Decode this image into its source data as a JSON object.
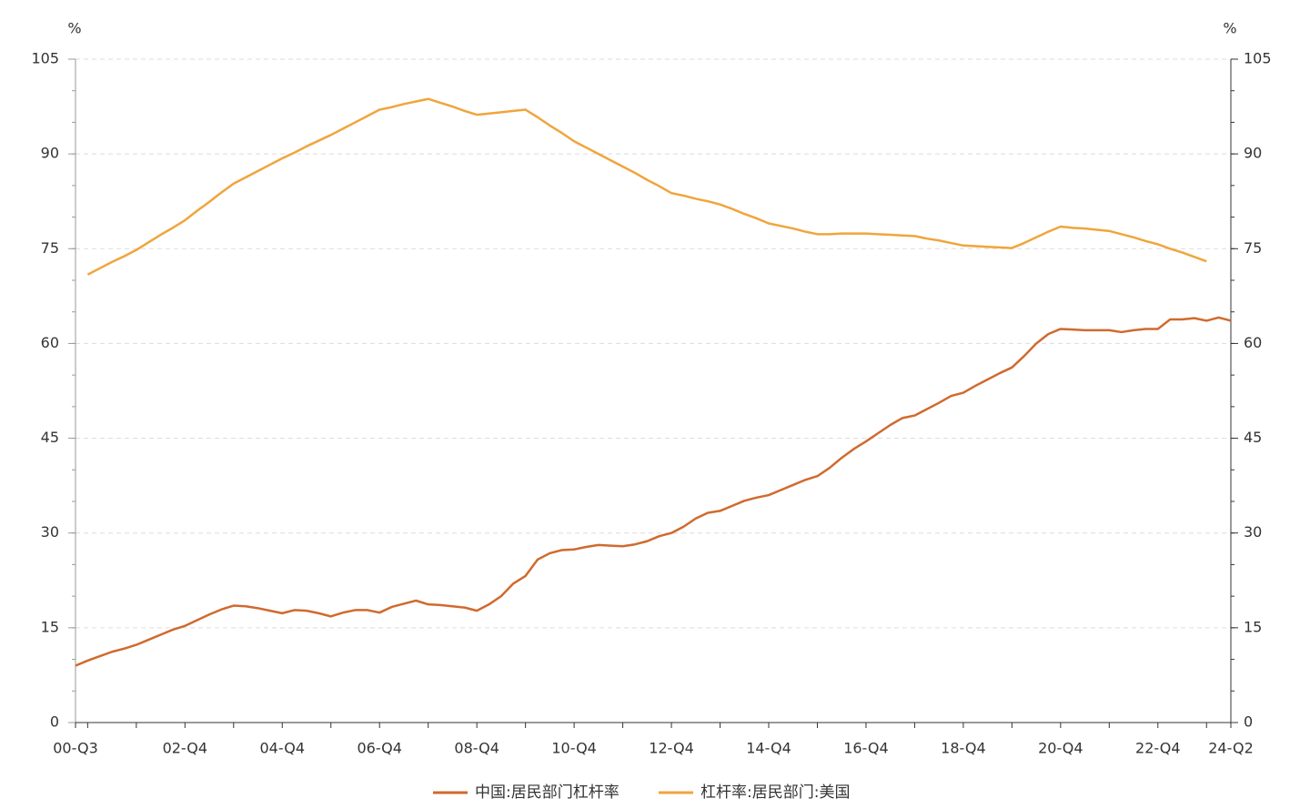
{
  "chart_data": {
    "type": "line",
    "y_label": "%",
    "y2_label": "%",
    "categories": [
      "00-Q3",
      null,
      null,
      null,
      null,
      null,
      null,
      null,
      null,
      "02-Q4",
      null,
      null,
      null,
      null,
      null,
      null,
      null,
      "04-Q4",
      null,
      null,
      null,
      null,
      null,
      null,
      null,
      "06-Q4",
      null,
      null,
      null,
      null,
      null,
      null,
      null,
      "08-Q4",
      null,
      null,
      null,
      null,
      null,
      null,
      null,
      "10-Q4",
      null,
      null,
      null,
      null,
      null,
      null,
      null,
      "12-Q4",
      null,
      null,
      null,
      null,
      null,
      null,
      null,
      "14-Q4",
      null,
      null,
      null,
      null,
      null,
      null,
      null,
      "16-Q4",
      null,
      null,
      null,
      null,
      null,
      null,
      null,
      "18-Q4",
      null,
      null,
      null,
      null,
      null,
      null,
      null,
      "20-Q4",
      null,
      null,
      null,
      null,
      null,
      null,
      null,
      "22-Q4",
      null,
      null,
      null,
      null,
      null,
      "24-Q2"
    ],
    "series": [
      {
        "name": "中国:居民部门杠杆率",
        "color": "#d06a2e",
        "values": [
          9.0,
          9.8,
          10.5,
          11.2,
          11.7,
          12.3,
          13.1,
          13.9,
          14.7,
          15.3,
          16.2,
          17.1,
          17.9,
          18.5,
          18.4,
          18.1,
          17.7,
          17.3,
          17.8,
          17.7,
          17.3,
          16.8,
          17.4,
          17.8,
          17.8,
          17.4,
          18.3,
          18.8,
          19.3,
          18.7,
          18.6,
          18.4,
          18.2,
          17.7,
          18.7,
          20.0,
          22.0,
          23.2,
          25.8,
          26.8,
          27.3,
          27.4,
          27.8,
          28.1,
          28.0,
          27.9,
          28.2,
          28.7,
          29.5,
          30.0,
          31.0,
          32.3,
          33.2,
          33.5,
          34.3,
          35.1,
          35.6,
          36.0,
          36.8,
          37.6,
          38.4,
          39.0,
          40.3,
          41.9,
          43.3,
          44.5,
          45.8,
          47.1,
          48.2,
          48.6,
          49.6,
          50.6,
          51.7,
          52.2,
          53.3,
          54.3,
          55.3,
          56.2,
          58.0,
          60.0,
          61.5,
          62.3,
          62.2,
          62.1,
          62.1,
          62.1,
          61.8,
          62.1,
          62.3,
          62.3,
          63.8,
          63.8,
          64.0,
          63.6,
          64.1,
          63.6
        ]
      },
      {
        "name": "杠杆率:居民部门:美国",
        "color": "#f0a53c",
        "axis": "y2",
        "values": [
          null,
          70.9,
          71.9,
          72.9,
          73.8,
          74.8,
          76.0,
          77.2,
          78.3,
          79.5,
          81.0,
          82.4,
          83.9,
          85.3,
          86.3,
          87.3,
          88.3,
          89.3,
          90.2,
          91.2,
          92.1,
          93.0,
          94.0,
          95.0,
          96.0,
          97.0,
          97.4,
          97.9,
          98.3,
          98.7,
          98.1,
          97.5,
          96.8,
          96.2,
          96.4,
          96.6,
          96.8,
          97.0,
          95.8,
          94.5,
          93.3,
          92.0,
          91.0,
          90.0,
          89.0,
          88.0,
          87.0,
          85.9,
          84.9,
          83.8,
          83.4,
          82.9,
          82.5,
          82.0,
          81.3,
          80.5,
          79.8,
          79.0,
          78.6,
          78.2,
          77.7,
          77.3,
          77.3,
          77.4,
          77.4,
          77.4,
          77.3,
          77.2,
          77.1,
          77.0,
          76.6,
          76.3,
          75.9,
          75.5,
          75.4,
          75.3,
          75.2,
          75.1,
          75.9,
          76.8,
          77.7,
          78.5,
          78.3,
          78.2,
          78.0,
          77.8,
          77.3,
          76.8,
          76.2,
          75.7,
          75.0,
          74.4,
          73.7,
          73.0,
          null,
          null
        ]
      }
    ],
    "ylim": [
      0,
      105
    ],
    "yticks": [
      0,
      15,
      30,
      45,
      60,
      75,
      90,
      105
    ],
    "y2lim": [
      0,
      105
    ],
    "y2ticks": [
      0,
      15,
      30,
      45,
      60,
      75,
      90,
      105
    ],
    "grid": true,
    "legend": "bottom"
  }
}
